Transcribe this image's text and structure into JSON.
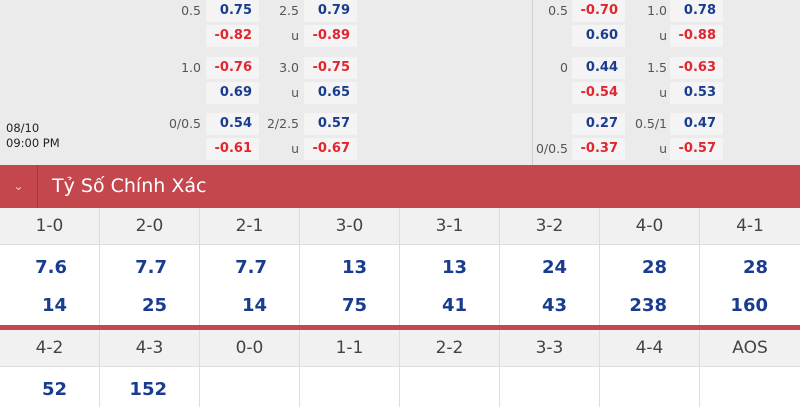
{
  "match": {
    "date": "08/10",
    "time": "09:00 PM"
  },
  "odds_left": [
    {
      "handicap": "0.5",
      "h_top": "0.75",
      "h_bot": "-0.82",
      "total": "2.5",
      "total_sub": "u",
      "t_top": "0.79",
      "t_bot": "-0.89",
      "hc_label_row": "top"
    },
    {
      "handicap": "1.0",
      "h_top": "-0.76",
      "h_bot": "0.69",
      "total": "3.0",
      "total_sub": "u",
      "t_top": "-0.75",
      "t_bot": "0.65",
      "hc_label_row": "top"
    },
    {
      "handicap": "0/0.5",
      "h_top": "0.54",
      "h_bot": "-0.61",
      "total": "2/2.5",
      "total_sub": "u",
      "t_top": "0.57",
      "t_bot": "-0.67",
      "hc_label_row": "top"
    }
  ],
  "odds_right": [
    {
      "handicap": "0.5",
      "h_top": "-0.70",
      "h_bot": "0.60",
      "total": "1.0",
      "total_sub": "u",
      "t_top": "0.78",
      "t_bot": "-0.88",
      "hc_label_row": "top"
    },
    {
      "handicap": "0",
      "h_top": "0.44",
      "h_bot": "-0.54",
      "total": "1.5",
      "total_sub": "u",
      "t_top": "-0.63",
      "t_bot": "0.53",
      "hc_label_row": "top"
    },
    {
      "handicap": "0/0.5",
      "h_top": "0.27",
      "h_bot": "-0.37",
      "total": "0.5/1",
      "total_sub": "u",
      "t_top": "0.47",
      "t_bot": "-0.57",
      "hc_label_row": "bottom"
    }
  ],
  "section": {
    "title": "Tỷ Số Chính Xác",
    "toggle_icon": "chevron-down-icon"
  },
  "scores_row1": [
    {
      "score": "1-0",
      "top": "7.6",
      "bot": "14"
    },
    {
      "score": "2-0",
      "top": "7.7",
      "bot": "25"
    },
    {
      "score": "2-1",
      "top": "7.7",
      "bot": "14"
    },
    {
      "score": "3-0",
      "top": "13",
      "bot": "75"
    },
    {
      "score": "3-1",
      "top": "13",
      "bot": "41"
    },
    {
      "score": "3-2",
      "top": "24",
      "bot": "43"
    },
    {
      "score": "4-0",
      "top": "28",
      "bot": "238"
    },
    {
      "score": "4-1",
      "top": "28",
      "bot": "160"
    }
  ],
  "scores_row2": [
    {
      "score": "4-2",
      "top": "52"
    },
    {
      "score": "4-3",
      "top": "152"
    },
    {
      "score": "0-0"
    },
    {
      "score": "1-1"
    },
    {
      "score": "2-2"
    },
    {
      "score": "3-3"
    },
    {
      "score": "4-4"
    },
    {
      "score": "AOS"
    }
  ],
  "colors": {
    "accent": "#c4474e",
    "positive": "#1a3c8e",
    "negative": "#e0262f"
  }
}
